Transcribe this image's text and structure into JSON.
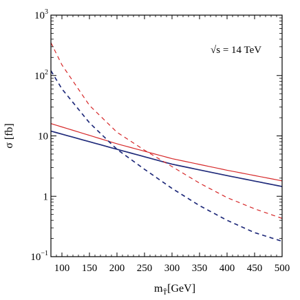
{
  "chart_data": {
    "type": "line",
    "title": "",
    "xlabel": "m",
    "xlabel_sub": "T̃",
    "xlabel_unit": "[GeV]",
    "ylabel": "σ  [fb]",
    "xlim": [
      80,
      500
    ],
    "ylim": [
      0.1,
      1000
    ],
    "yscale": "log",
    "grid": false,
    "annotation": "√s = 14 TeV",
    "x_ticks": [
      100,
      150,
      200,
      250,
      300,
      350,
      400,
      450,
      500
    ],
    "y_ticks": [
      {
        "value": 0.1,
        "label": "10",
        "sup": "−1"
      },
      {
        "value": 1,
        "label": "1",
        "sup": ""
      },
      {
        "value": 10,
        "label": "10",
        "sup": ""
      },
      {
        "value": 100,
        "label": "10",
        "sup": "2"
      },
      {
        "value": 1000,
        "label": "10",
        "sup": "3"
      }
    ],
    "series": [
      {
        "color": "#d62728",
        "style": "solid",
        "x": [
          80,
          200,
          300,
          400,
          500
        ],
        "y": [
          16,
          7.4,
          4.2,
          2.7,
          1.8
        ]
      },
      {
        "color": "#1f2a7a",
        "style": "solid",
        "x": [
          80,
          200,
          300,
          400,
          500
        ],
        "y": [
          12,
          6.0,
          3.4,
          2.2,
          1.45
        ]
      },
      {
        "color": "#d62728",
        "style": "dashed",
        "x": [
          80,
          100,
          150,
          200,
          250,
          300,
          350,
          400,
          450,
          500
        ],
        "y": [
          350,
          150,
          32,
          11.5,
          5.8,
          3.1,
          1.65,
          0.95,
          0.62,
          0.43
        ]
      },
      {
        "color": "#1f2a7a",
        "style": "dashed",
        "x": [
          80,
          100,
          150,
          200,
          250,
          300,
          350,
          400,
          450,
          500
        ],
        "y": [
          120,
          60,
          16.5,
          6.0,
          2.8,
          1.35,
          0.7,
          0.4,
          0.25,
          0.18
        ]
      }
    ]
  }
}
